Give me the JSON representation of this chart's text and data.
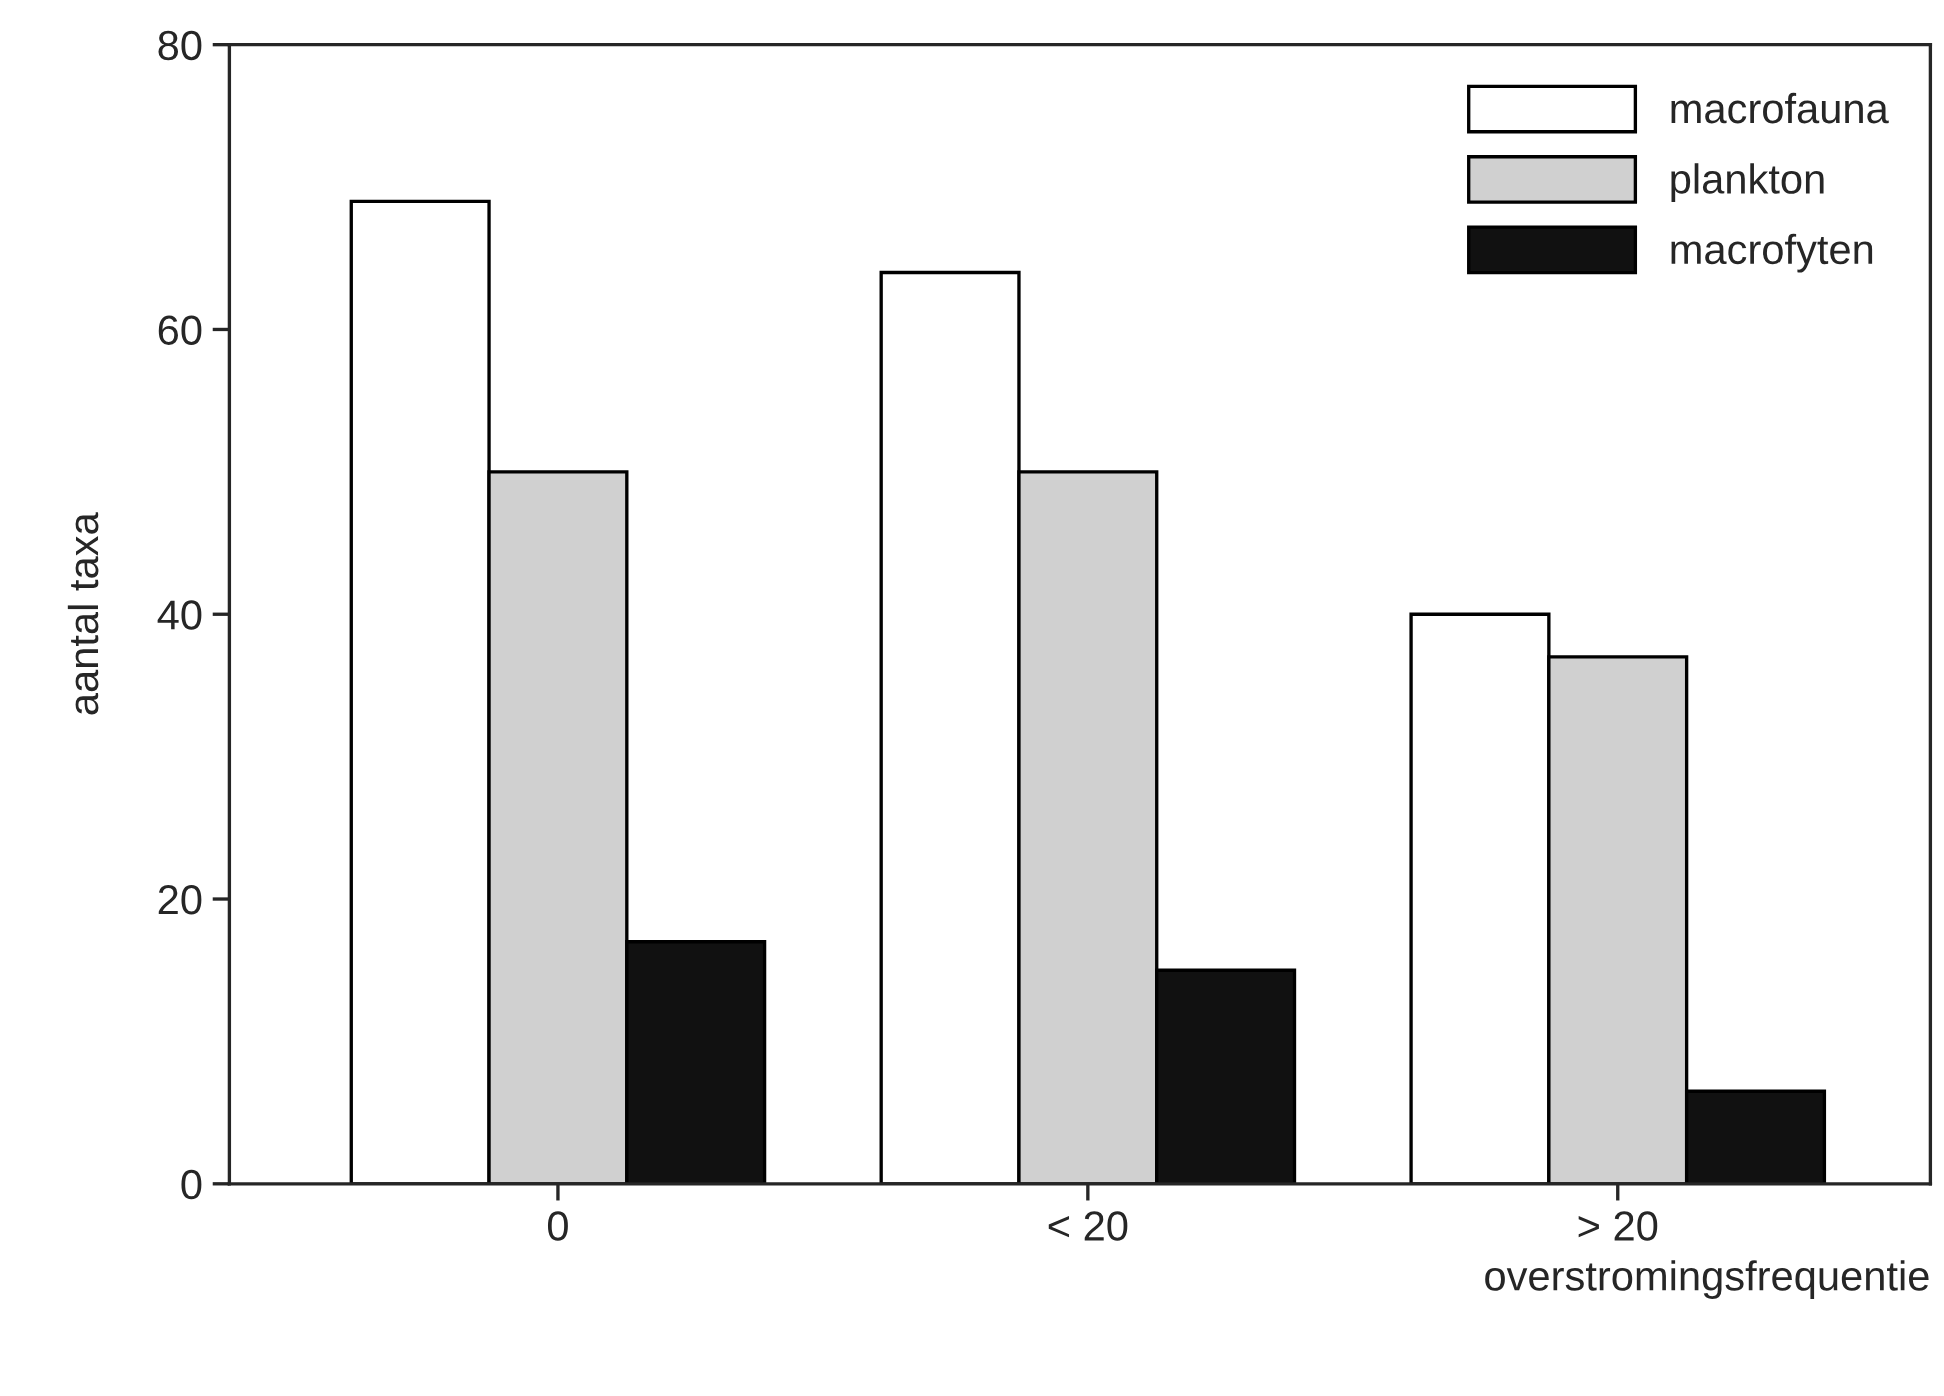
{
  "chart_data": {
    "type": "bar",
    "categories": [
      "0",
      "< 20",
      "> 20"
    ],
    "series": [
      {
        "name": "macrofauna",
        "color": "#ffffff",
        "values": [
          69,
          64,
          40
        ]
      },
      {
        "name": "plankton",
        "color": "#d0d0d0",
        "values": [
          50,
          50,
          37
        ]
      },
      {
        "name": "macrofyten",
        "color": "#111111",
        "values": [
          17,
          15,
          6.5
        ]
      }
    ],
    "xlabel": "overstromingsfrequentie",
    "ylabel": "aantal taxa",
    "ylim": [
      0,
      80
    ],
    "yticks": [
      0,
      20,
      40,
      60,
      80
    ],
    "grid": false,
    "legend": "top right"
  }
}
